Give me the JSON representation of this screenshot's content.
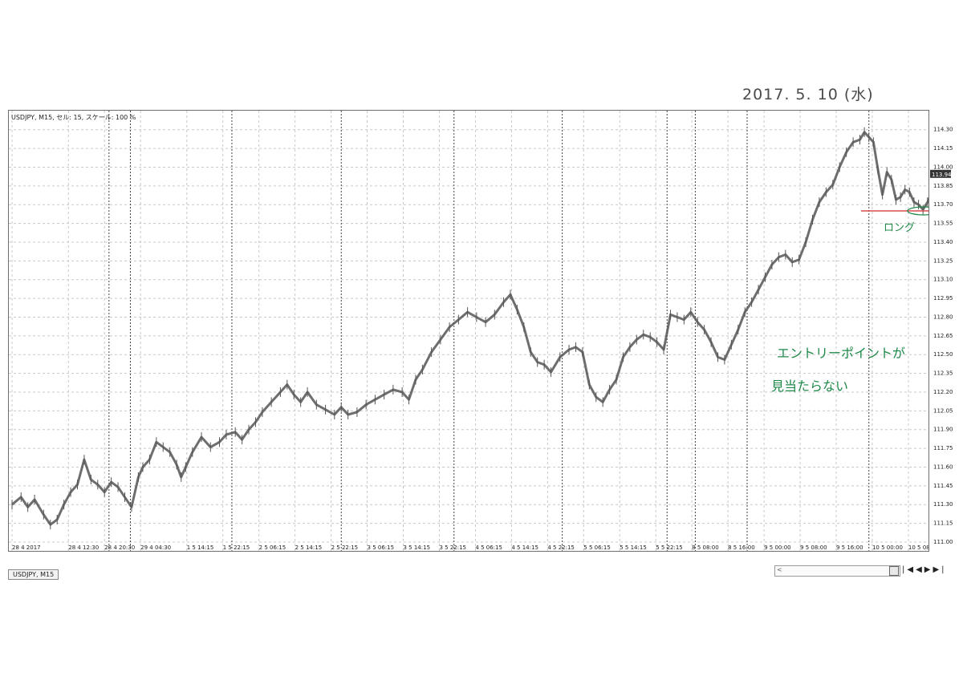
{
  "header": {
    "symbol_info": "USDJPY, M15, セル: 15, スケール: 100 %"
  },
  "tab": {
    "label": "USDJPY, M15"
  },
  "annotations": {
    "date": "2017. 5. 10 (水)",
    "note_line1": "エントリーポイントが",
    "note_line2": "見当たらない",
    "long": "ロング"
  },
  "current_price_label": "113.94",
  "colors": {
    "candles": "#555555",
    "grid": "#c8c8c8",
    "separators": "#444444",
    "red_line": "#d84c4c",
    "green_ink": "#1f8a4a"
  },
  "chart_data": {
    "type": "line",
    "title": "",
    "ylim": [
      111.0,
      114.375
    ],
    "yticks": [
      111.0,
      111.15,
      111.3,
      111.45,
      111.6,
      111.75,
      111.9,
      112.05,
      112.2,
      112.35,
      112.5,
      112.65,
      112.8,
      112.95,
      113.1,
      113.25,
      113.4,
      113.55,
      113.7,
      113.85,
      114.0,
      114.15,
      114.3
    ],
    "ytick_labels": [
      "111.00",
      "111.15",
      "111.30",
      "111.45",
      "111.60",
      "111.75",
      "111.90",
      "112.05",
      "112.20",
      "112.35",
      "112.50",
      "112.65",
      "112.80",
      "112.95",
      "113.10",
      "113.25",
      "113.40",
      "113.55",
      "113.70",
      "113.85",
      "114.00",
      "114.15",
      "114.30"
    ],
    "xticks": [
      {
        "label": "28 4 2017",
        "t": 0
      },
      {
        "label": "28 4 12:30",
        "t": 50
      },
      {
        "label": "28 4 20:30",
        "t": 82
      },
      {
        "label": "29 4 04:30",
        "t": 114
      },
      {
        "label": "1 5 14:15",
        "t": 155
      },
      {
        "label": "1 5 22:15",
        "t": 187
      },
      {
        "label": "2 5 06:15",
        "t": 219
      },
      {
        "label": "2 5 14:15",
        "t": 251
      },
      {
        "label": "2 5 22:15",
        "t": 283
      },
      {
        "label": "3 5 06:15",
        "t": 315
      },
      {
        "label": "3 5 14:15",
        "t": 347
      },
      {
        "label": "3 5 22:15",
        "t": 379
      },
      {
        "label": "4 5 06:15",
        "t": 411
      },
      {
        "label": "4 5 14:15",
        "t": 443
      },
      {
        "label": "4 5 22:15",
        "t": 475
      },
      {
        "label": "5 5 06:15",
        "t": 507
      },
      {
        "label": "5 5 14:15",
        "t": 539
      },
      {
        "label": "5 5 22:15",
        "t": 571
      },
      {
        "label": "8 5 08:00",
        "t": 603
      },
      {
        "label": "8 5 16:00",
        "t": 635
      },
      {
        "label": "9 5 00:00",
        "t": 667
      },
      {
        "label": "9 5 08:00",
        "t": 699
      },
      {
        "label": "9 5 16:00",
        "t": 731
      },
      {
        "label": "10 5 00:00",
        "t": 763
      },
      {
        "label": "10 5 08:00",
        "t": 795
      }
    ],
    "day_separators_t": [
      86,
      105,
      195,
      292,
      392,
      488,
      581,
      606,
      652,
      760
    ],
    "t_range": [
      0,
      810
    ],
    "series": [
      {
        "values": [
          [
            0,
            111.3
          ],
          [
            8,
            111.36
          ],
          [
            14,
            111.28
          ],
          [
            20,
            111.34
          ],
          [
            28,
            111.22
          ],
          [
            34,
            111.14
          ],
          [
            40,
            111.18
          ],
          [
            46,
            111.3
          ],
          [
            52,
            111.4
          ],
          [
            58,
            111.46
          ],
          [
            64,
            111.66
          ],
          [
            70,
            111.5
          ],
          [
            76,
            111.46
          ],
          [
            82,
            111.4
          ],
          [
            88,
            111.48
          ],
          [
            94,
            111.44
          ],
          [
            100,
            111.36
          ],
          [
            106,
            111.28
          ],
          [
            112,
            111.52
          ],
          [
            116,
            111.6
          ],
          [
            122,
            111.66
          ],
          [
            128,
            111.8
          ],
          [
            134,
            111.76
          ],
          [
            140,
            111.72
          ],
          [
            146,
            111.62
          ],
          [
            150,
            111.52
          ],
          [
            154,
            111.6
          ],
          [
            160,
            111.72
          ],
          [
            168,
            111.84
          ],
          [
            176,
            111.76
          ],
          [
            184,
            111.8
          ],
          [
            190,
            111.86
          ],
          [
            198,
            111.88
          ],
          [
            204,
            111.82
          ],
          [
            210,
            111.9
          ],
          [
            216,
            111.96
          ],
          [
            222,
            112.04
          ],
          [
            230,
            112.12
          ],
          [
            238,
            112.2
          ],
          [
            244,
            112.26
          ],
          [
            250,
            112.18
          ],
          [
            256,
            112.12
          ],
          [
            262,
            112.2
          ],
          [
            270,
            112.1
          ],
          [
            278,
            112.06
          ],
          [
            286,
            112.02
          ],
          [
            292,
            112.08
          ],
          [
            298,
            112.02
          ],
          [
            306,
            112.04
          ],
          [
            314,
            112.1
          ],
          [
            322,
            112.14
          ],
          [
            330,
            112.18
          ],
          [
            338,
            112.22
          ],
          [
            346,
            112.2
          ],
          [
            352,
            112.14
          ],
          [
            358,
            112.3
          ],
          [
            364,
            112.38
          ],
          [
            372,
            112.52
          ],
          [
            380,
            112.62
          ],
          [
            388,
            112.72
          ],
          [
            396,
            112.78
          ],
          [
            404,
            112.84
          ],
          [
            412,
            112.8
          ],
          [
            420,
            112.76
          ],
          [
            428,
            112.82
          ],
          [
            436,
            112.92
          ],
          [
            442,
            112.98
          ],
          [
            448,
            112.86
          ],
          [
            454,
            112.72
          ],
          [
            460,
            112.52
          ],
          [
            466,
            112.44
          ],
          [
            472,
            112.42
          ],
          [
            478,
            112.36
          ],
          [
            486,
            112.48
          ],
          [
            494,
            112.54
          ],
          [
            500,
            112.56
          ],
          [
            506,
            112.52
          ],
          [
            512,
            112.26
          ],
          [
            518,
            112.16
          ],
          [
            524,
            112.12
          ],
          [
            530,
            112.22
          ],
          [
            536,
            112.3
          ],
          [
            542,
            112.48
          ],
          [
            548,
            112.56
          ],
          [
            554,
            112.62
          ],
          [
            560,
            112.66
          ],
          [
            566,
            112.64
          ],
          [
            572,
            112.6
          ],
          [
            578,
            112.54
          ],
          [
            584,
            112.82
          ],
          [
            590,
            112.8
          ],
          [
            596,
            112.78
          ],
          [
            602,
            112.84
          ],
          [
            608,
            112.76
          ],
          [
            614,
            112.7
          ],
          [
            620,
            112.6
          ],
          [
            626,
            112.48
          ],
          [
            632,
            112.46
          ],
          [
            638,
            112.58
          ],
          [
            644,
            112.7
          ],
          [
            650,
            112.84
          ],
          [
            656,
            112.92
          ],
          [
            662,
            113.02
          ],
          [
            668,
            113.12
          ],
          [
            674,
            113.22
          ],
          [
            680,
            113.28
          ],
          [
            686,
            113.3
          ],
          [
            692,
            113.24
          ],
          [
            698,
            113.26
          ],
          [
            704,
            113.4
          ],
          [
            710,
            113.58
          ],
          [
            716,
            113.72
          ],
          [
            722,
            113.8
          ],
          [
            728,
            113.86
          ],
          [
            734,
            114.0
          ],
          [
            740,
            114.12
          ],
          [
            746,
            114.2
          ],
          [
            752,
            114.22
          ],
          [
            756,
            114.28
          ],
          [
            760,
            114.24
          ],
          [
            764,
            114.2
          ],
          [
            768,
            113.98
          ],
          [
            772,
            113.78
          ],
          [
            776,
            113.96
          ],
          [
            780,
            113.9
          ],
          [
            784,
            113.74
          ],
          [
            788,
            113.76
          ],
          [
            792,
            113.82
          ],
          [
            796,
            113.8
          ],
          [
            800,
            113.72
          ],
          [
            804,
            113.7
          ],
          [
            808,
            113.66
          ],
          [
            812,
            113.72
          ],
          [
            816,
            113.8
          ],
          [
            820,
            113.86
          ],
          [
            824,
            113.94
          ]
        ]
      }
    ],
    "horizontal_marker": {
      "price": 113.65,
      "t_start": 753,
      "t_end": 824
    }
  }
}
